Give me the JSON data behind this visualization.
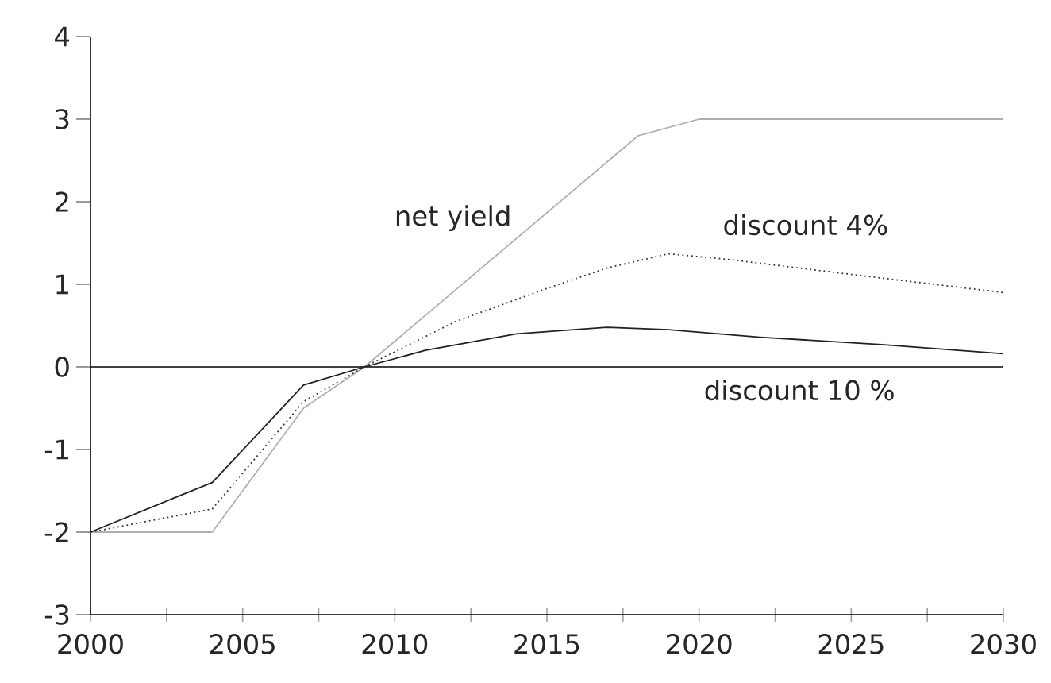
{
  "chart_data": {
    "type": "line",
    "xlim": [
      2000,
      2030
    ],
    "ylim": [
      -3,
      4
    ],
    "xticks": [
      2000,
      {
        "value": 2002.5,
        "label": null
      },
      2005,
      {
        "value": 2007.5,
        "label": null
      },
      2010,
      {
        "value": 2012.5,
        "label": null
      },
      2015,
      {
        "value": 2017.5,
        "label": null
      },
      2020,
      {
        "value": 2022.5,
        "label": null
      },
      2025,
      {
        "value": 2027.5,
        "label": null
      },
      2030
    ],
    "yticks": [
      -3,
      -2,
      -1,
      0,
      1,
      2,
      3,
      4
    ],
    "grid": false,
    "legend": false,
    "marker": "none",
    "ref_lines": [
      {
        "axis": "y",
        "value": 0,
        "color": "#000000",
        "line_style": "solid"
      }
    ],
    "series": [
      {
        "name": "net yield",
        "color": "#b0b0b0",
        "line_style": "solid",
        "x": [
          2000,
          2004,
          2007,
          2009,
          2018,
          2020,
          2030
        ],
        "values": [
          -2,
          -2,
          -0.5,
          0,
          2.8,
          3,
          3
        ]
      },
      {
        "name": "discount 4%",
        "color": "#333333",
        "line_style": "dotted",
        "x": [
          2000,
          2004,
          2007,
          2009,
          2012,
          2015,
          2017,
          2019,
          2021,
          2025,
          2030
        ],
        "values": [
          -2,
          -1.72,
          -0.42,
          0,
          0.55,
          0.95,
          1.2,
          1.37,
          1.3,
          1.12,
          0.9
        ]
      },
      {
        "name": "discount 10 %",
        "color": "#222222",
        "line_style": "solid",
        "x": [
          2000,
          2003,
          2004,
          2007,
          2009,
          2011,
          2014,
          2017,
          2019,
          2022,
          2026,
          2030
        ],
        "values": [
          -2,
          -1.55,
          -1.4,
          -0.22,
          0,
          0.2,
          0.4,
          0.48,
          0.45,
          0.36,
          0.27,
          0.16
        ]
      }
    ]
  }
}
